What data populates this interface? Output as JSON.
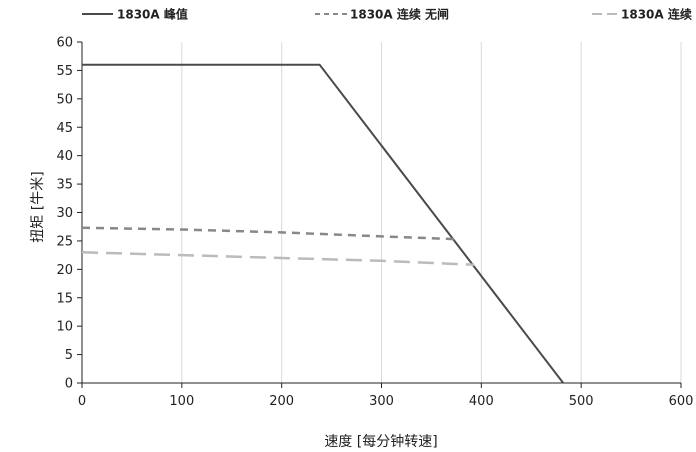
{
  "chart_data": {
    "type": "line",
    "title": "",
    "xlabel": "速度 [每分钟转速]",
    "ylabel": "扭矩 [牛米]",
    "xlim": [
      0,
      600
    ],
    "ylim": [
      0,
      60
    ],
    "xticks": [
      0,
      100,
      200,
      300,
      400,
      500,
      600
    ],
    "yticks": [
      0,
      5,
      10,
      15,
      20,
      25,
      30,
      35,
      40,
      45,
      50,
      55,
      60
    ],
    "grid": "vertical",
    "legend_position": "top",
    "series": [
      {
        "name": "1830A 峰值",
        "color": "#4a4a4a",
        "style": "solid",
        "x": [
          0,
          238,
          482
        ],
        "y": [
          56,
          56,
          0
        ]
      },
      {
        "name": "1830A 连续 无闸",
        "color": "#888888",
        "style": "dashed-short",
        "x": [
          0,
          100,
          200,
          300,
          375
        ],
        "y": [
          27.3,
          27,
          26.5,
          25.8,
          25.3
        ]
      },
      {
        "name": "1830A 连续",
        "color": "#bbbbbb",
        "style": "dashed-long",
        "x": [
          0,
          100,
          200,
          300,
          393
        ],
        "y": [
          23,
          22.5,
          22,
          21.5,
          20.8
        ]
      }
    ]
  }
}
